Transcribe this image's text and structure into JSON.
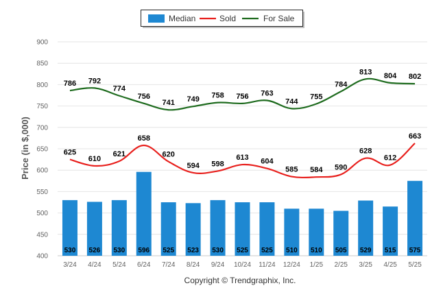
{
  "chart_data": {
    "type": "bar",
    "categories": [
      "3/24",
      "4/24",
      "5/24",
      "6/24",
      "7/24",
      "8/24",
      "9/24",
      "10/24",
      "11/24",
      "12/24",
      "1/25",
      "2/25",
      "3/25",
      "4/25",
      "5/25"
    ],
    "series": [
      {
        "name": "Median",
        "type": "bar",
        "color": "#1e88d2",
        "values": [
          530,
          526,
          530,
          596,
          525,
          523,
          530,
          525,
          525,
          510,
          510,
          505,
          529,
          515,
          575
        ]
      },
      {
        "name": "Sold",
        "type": "line",
        "color": "#e8201d",
        "values": [
          625,
          610,
          621,
          658,
          620,
          594,
          598,
          613,
          604,
          585,
          584,
          590,
          628,
          612,
          663
        ]
      },
      {
        "name": "For Sale",
        "type": "line",
        "color": "#1e6b1e",
        "values": [
          786,
          792,
          774,
          756,
          741,
          749,
          758,
          756,
          763,
          744,
          755,
          784,
          813,
          804,
          802
        ]
      }
    ],
    "ylabel": "Price (in $,000)",
    "ylim": [
      400,
      900
    ],
    "yticks": [
      400,
      450,
      500,
      550,
      600,
      650,
      700,
      750,
      800,
      850,
      900
    ],
    "grid": true,
    "legend_position": "top-center"
  },
  "footer": {
    "copyright": "Copyright © Trendgraphix, Inc."
  }
}
